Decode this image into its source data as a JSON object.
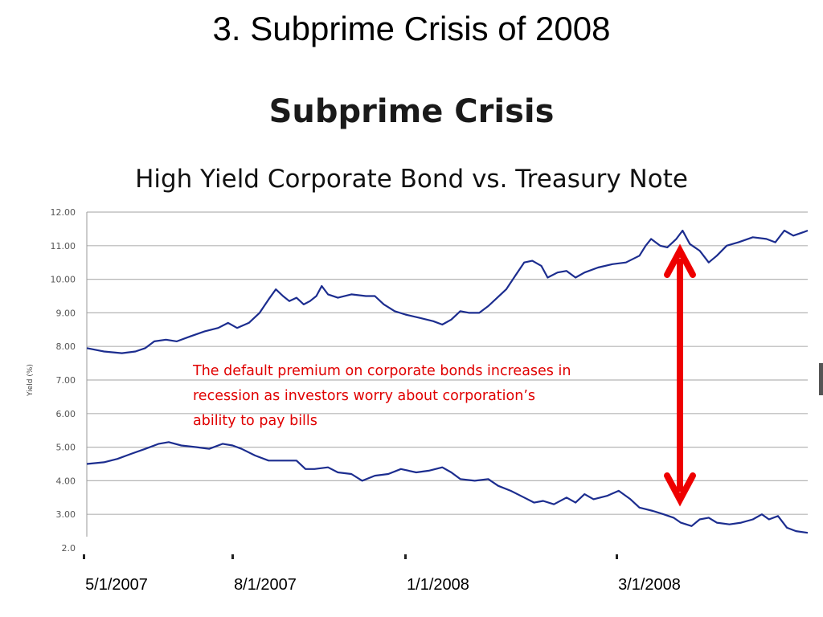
{
  "slide_title": "3. Subprime Crisis of 2008",
  "annotation": {
    "lines": [
      "The default premium on corporate bonds increases in",
      "recession as investors worry about corporation’s",
      "ability to pay bills"
    ]
  },
  "colors": {
    "series_line": "#1c2d8f",
    "arrow": "#ee0000",
    "annotation_text": "#e00000",
    "grid": "#b5b5b5"
  },
  "chart_data": {
    "type": "line",
    "title": "Subprime Crisis",
    "subtitle": "High Yield Corporate Bond vs. Treasury Note",
    "ylabel": "Yield (%)",
    "ylim": [
      2.0,
      12.0
    ],
    "y_ticks": [
      "12.00",
      "11.00",
      "10.00",
      "9.00",
      "8.00",
      "7.00",
      "6.00",
      "5.00",
      "4.00",
      "3.00",
      "2.0"
    ],
    "x_date_labels": [
      "5/1/2007",
      "8/1/2007",
      "1/1/2008",
      "3/1/2008"
    ],
    "grid": true,
    "series": [
      {
        "points": [
          [
            "2007-04-01",
            7.95
          ],
          [
            "2007-04-20",
            7.85
          ],
          [
            "2007-05-10",
            7.8
          ],
          [
            "2007-05-25",
            7.85
          ],
          [
            "2007-06-05",
            7.95
          ],
          [
            "2007-06-15",
            8.15
          ],
          [
            "2007-06-28",
            8.2
          ],
          [
            "2007-07-10",
            8.15
          ],
          [
            "2007-07-25",
            8.3
          ],
          [
            "2007-08-10",
            8.45
          ],
          [
            "2007-08-25",
            8.55
          ],
          [
            "2007-09-05",
            8.7
          ],
          [
            "2007-09-15",
            8.55
          ],
          [
            "2007-09-28",
            8.7
          ],
          [
            "2007-10-10",
            9.0
          ],
          [
            "2007-10-20",
            9.4
          ],
          [
            "2007-10-28",
            9.7
          ],
          [
            "2007-11-05",
            9.5
          ],
          [
            "2007-11-12",
            9.35
          ],
          [
            "2007-11-20",
            9.45
          ],
          [
            "2007-11-28",
            9.25
          ],
          [
            "2007-12-05",
            9.35
          ],
          [
            "2007-12-12",
            9.5
          ],
          [
            "2007-12-18",
            9.8
          ],
          [
            "2007-12-25",
            9.55
          ],
          [
            "2008-01-05",
            9.45
          ],
          [
            "2008-01-20",
            9.55
          ],
          [
            "2008-02-05",
            9.5
          ],
          [
            "2008-02-15",
            9.5
          ],
          [
            "2008-02-25",
            9.25
          ],
          [
            "2008-03-08",
            9.05
          ],
          [
            "2008-03-20",
            8.95
          ],
          [
            "2008-04-05",
            8.85
          ],
          [
            "2008-04-20",
            8.75
          ],
          [
            "2008-04-30",
            8.65
          ],
          [
            "2008-05-10",
            8.8
          ],
          [
            "2008-05-20",
            9.05
          ],
          [
            "2008-05-30",
            9.0
          ],
          [
            "2008-06-10",
            9.0
          ],
          [
            "2008-06-20",
            9.2
          ],
          [
            "2008-06-30",
            9.45
          ],
          [
            "2008-07-10",
            9.7
          ],
          [
            "2008-07-20",
            10.1
          ],
          [
            "2008-07-30",
            10.5
          ],
          [
            "2008-08-08",
            10.55
          ],
          [
            "2008-08-18",
            10.4
          ],
          [
            "2008-08-25",
            10.05
          ],
          [
            "2008-09-05",
            10.2
          ],
          [
            "2008-09-15",
            10.25
          ],
          [
            "2008-09-25",
            10.05
          ],
          [
            "2008-10-05",
            10.2
          ],
          [
            "2008-10-20",
            10.35
          ],
          [
            "2008-11-05",
            10.45
          ],
          [
            "2008-11-20",
            10.5
          ],
          [
            "2008-12-05",
            10.7
          ],
          [
            "2008-12-12",
            11.0
          ],
          [
            "2008-12-18",
            11.2
          ],
          [
            "2008-12-28",
            11.0
          ],
          [
            "2009-01-05",
            10.95
          ],
          [
            "2009-01-15",
            11.2
          ],
          [
            "2009-01-22",
            11.45
          ],
          [
            "2009-01-30",
            11.05
          ],
          [
            "2009-02-10",
            10.85
          ],
          [
            "2009-02-20",
            10.5
          ],
          [
            "2009-03-01",
            10.7
          ],
          [
            "2009-03-12",
            11.0
          ],
          [
            "2009-03-25",
            11.1
          ],
          [
            "2009-04-10",
            11.25
          ],
          [
            "2009-04-25",
            11.2
          ],
          [
            "2009-05-05",
            11.1
          ],
          [
            "2009-05-15",
            11.45
          ],
          [
            "2009-05-25",
            11.3
          ],
          [
            "2009-06-05",
            11.4
          ],
          [
            "2009-06-10",
            11.45
          ]
        ]
      },
      {
        "points": [
          [
            "2007-04-01",
            4.5
          ],
          [
            "2007-04-20",
            4.55
          ],
          [
            "2007-05-05",
            4.65
          ],
          [
            "2007-05-20",
            4.8
          ],
          [
            "2007-06-05",
            4.95
          ],
          [
            "2007-06-20",
            5.1
          ],
          [
            "2007-07-01",
            5.15
          ],
          [
            "2007-07-15",
            5.05
          ],
          [
            "2007-08-01",
            5.0
          ],
          [
            "2007-08-15",
            4.95
          ],
          [
            "2007-08-30",
            5.1
          ],
          [
            "2007-09-10",
            5.05
          ],
          [
            "2007-09-20",
            4.95
          ],
          [
            "2007-10-05",
            4.75
          ],
          [
            "2007-10-20",
            4.6
          ],
          [
            "2007-11-05",
            4.6
          ],
          [
            "2007-11-20",
            4.6
          ],
          [
            "2007-11-30",
            4.35
          ],
          [
            "2007-12-10",
            4.35
          ],
          [
            "2007-12-25",
            4.4
          ],
          [
            "2008-01-05",
            4.25
          ],
          [
            "2008-01-20",
            4.2
          ],
          [
            "2008-02-01",
            4.0
          ],
          [
            "2008-02-15",
            4.15
          ],
          [
            "2008-03-01",
            4.2
          ],
          [
            "2008-03-15",
            4.35
          ],
          [
            "2008-04-01",
            4.25
          ],
          [
            "2008-04-15",
            4.3
          ],
          [
            "2008-04-30",
            4.4
          ],
          [
            "2008-05-10",
            4.25
          ],
          [
            "2008-05-20",
            4.05
          ],
          [
            "2008-06-05",
            4.0
          ],
          [
            "2008-06-20",
            4.05
          ],
          [
            "2008-07-01",
            3.85
          ],
          [
            "2008-07-15",
            3.7
          ],
          [
            "2008-07-30",
            3.5
          ],
          [
            "2008-08-10",
            3.35
          ],
          [
            "2008-08-20",
            3.4
          ],
          [
            "2008-09-01",
            3.3
          ],
          [
            "2008-09-15",
            3.5
          ],
          [
            "2008-09-25",
            3.35
          ],
          [
            "2008-10-05",
            3.6
          ],
          [
            "2008-10-15",
            3.45
          ],
          [
            "2008-10-30",
            3.55
          ],
          [
            "2008-11-12",
            3.7
          ],
          [
            "2008-11-25",
            3.45
          ],
          [
            "2008-12-05",
            3.2
          ],
          [
            "2008-12-20",
            3.1
          ],
          [
            "2009-01-01",
            3.0
          ],
          [
            "2009-01-12",
            2.9
          ],
          [
            "2009-01-20",
            2.75
          ],
          [
            "2009-02-01",
            2.65
          ],
          [
            "2009-02-10",
            2.85
          ],
          [
            "2009-02-20",
            2.9
          ],
          [
            "2009-03-01",
            2.75
          ],
          [
            "2009-03-15",
            2.7
          ],
          [
            "2009-03-28",
            2.75
          ],
          [
            "2009-04-10",
            2.85
          ],
          [
            "2009-04-20",
            3.0
          ],
          [
            "2009-04-28",
            2.85
          ],
          [
            "2009-05-08",
            2.95
          ],
          [
            "2009-05-18",
            2.6
          ],
          [
            "2009-05-28",
            2.5
          ],
          [
            "2009-06-10",
            2.45
          ]
        ]
      }
    ]
  }
}
